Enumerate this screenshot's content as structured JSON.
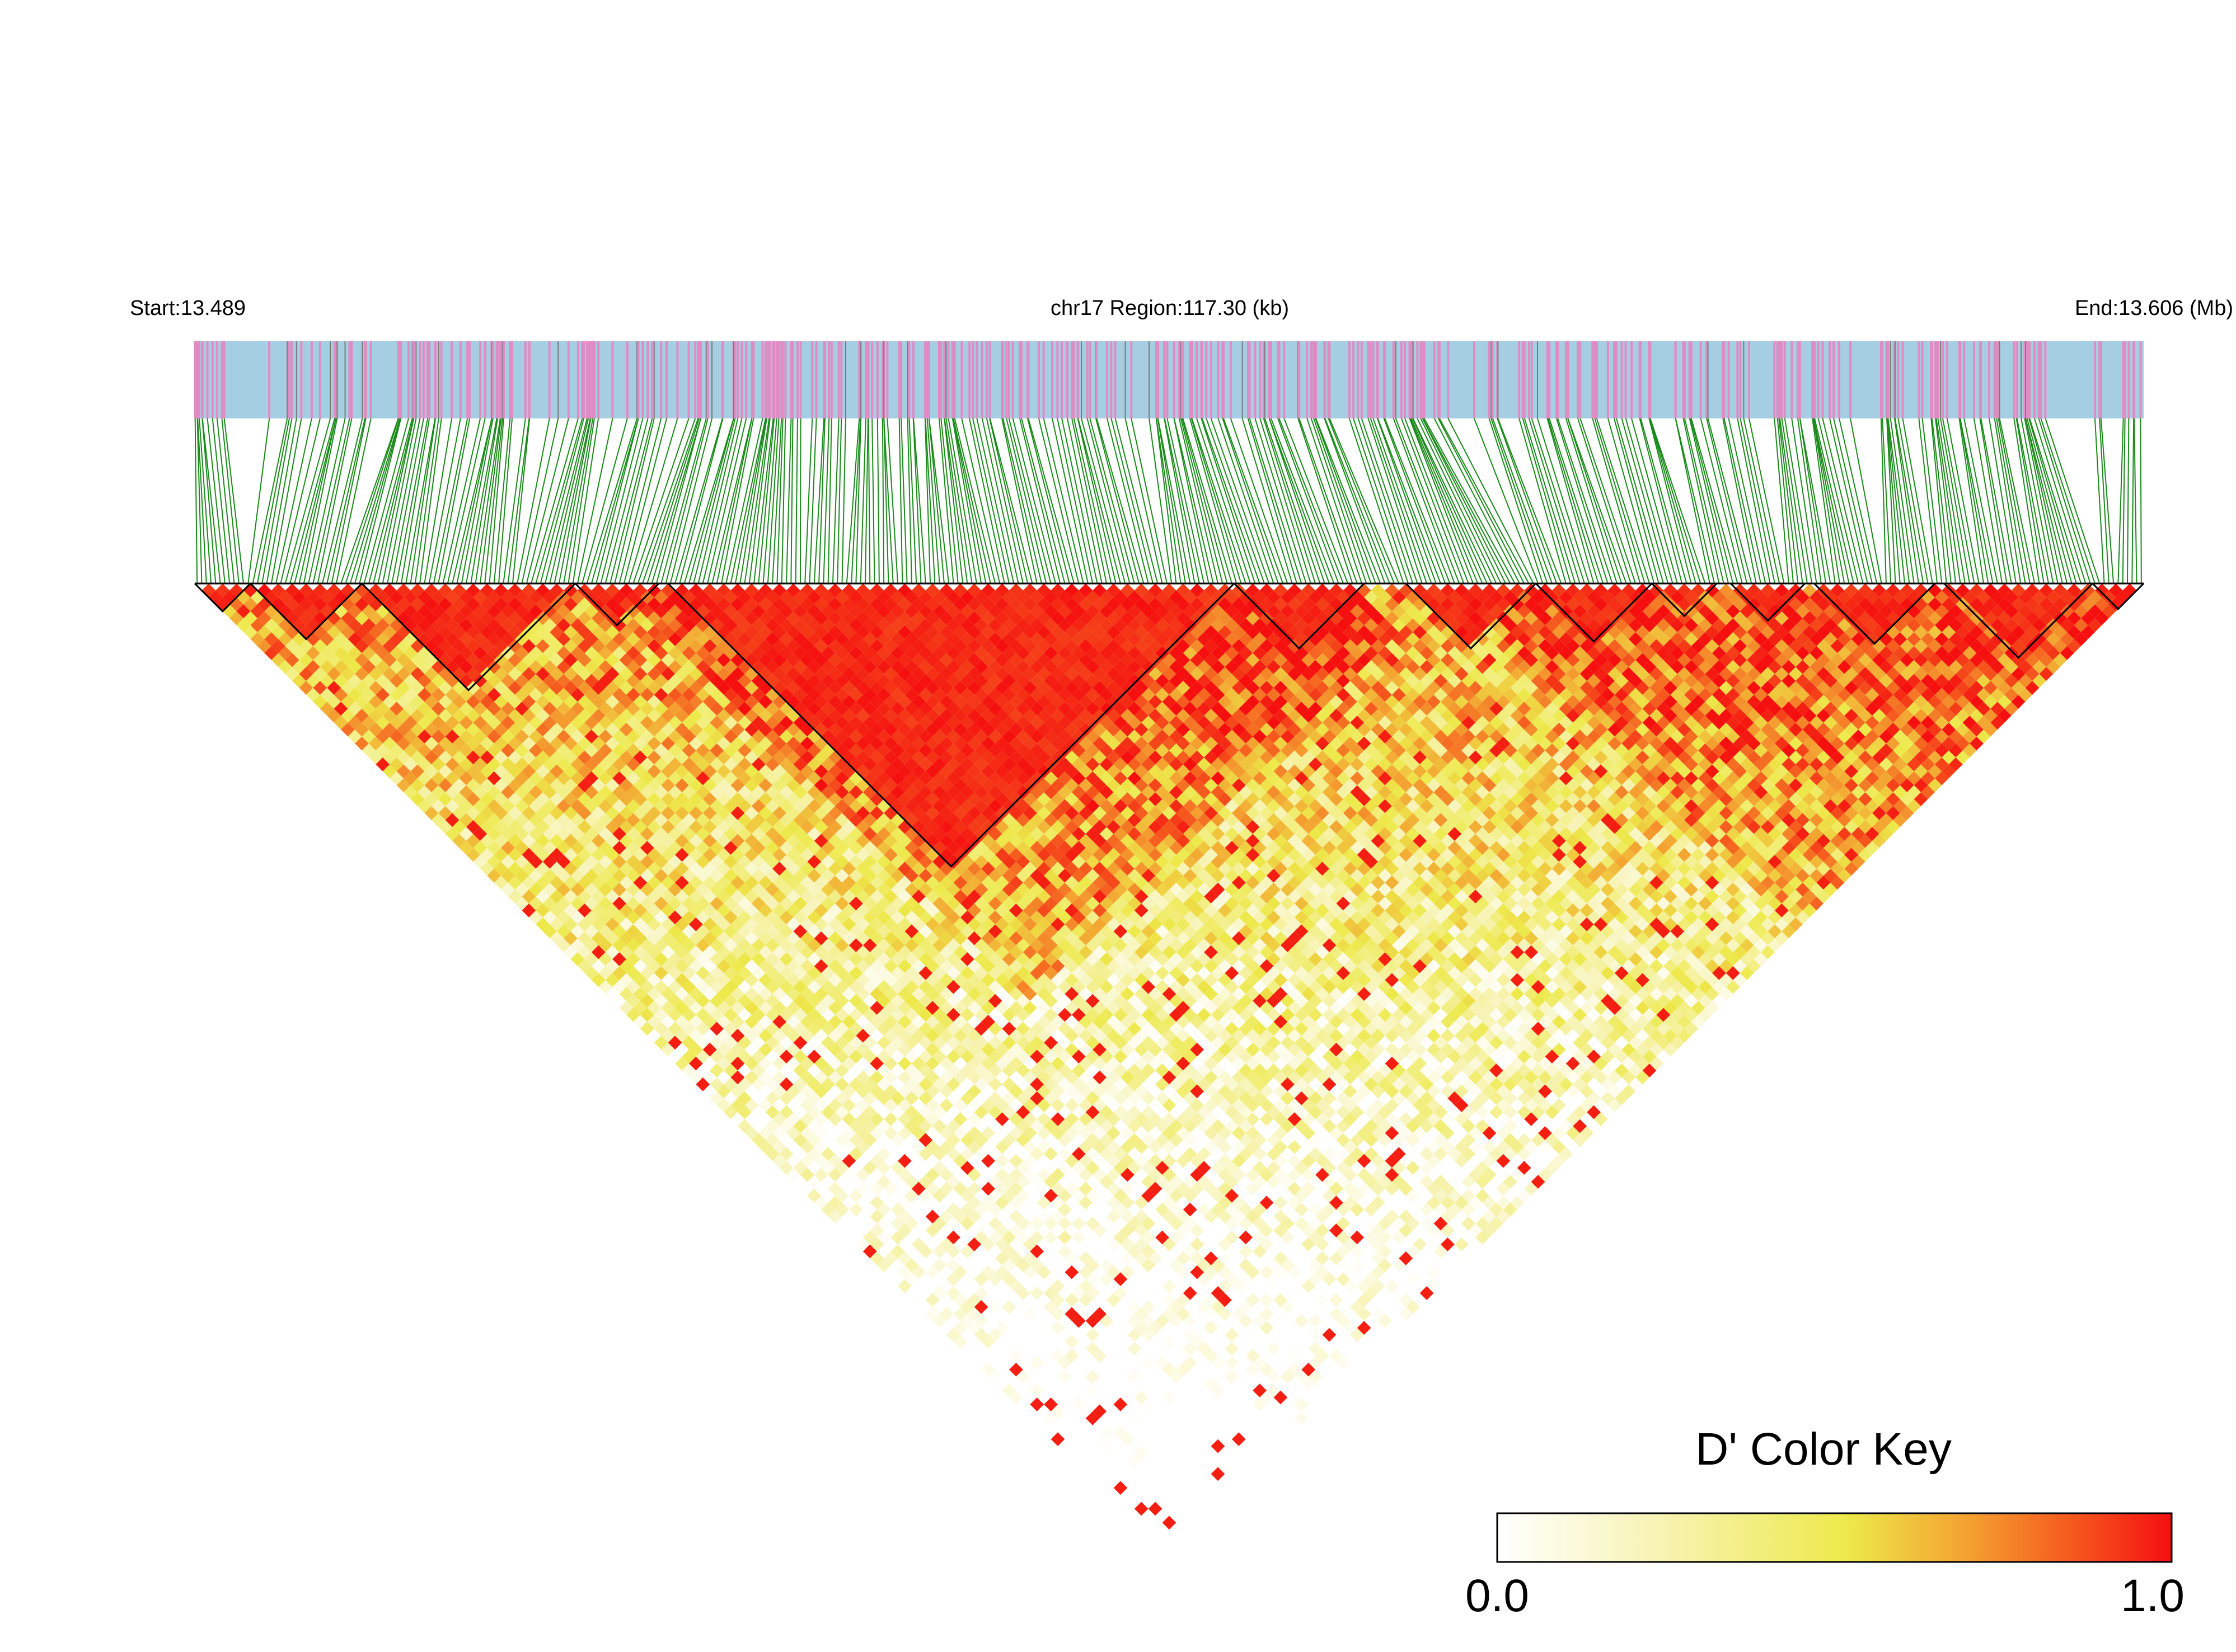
{
  "chart_data": {
    "type": "heatmap",
    "subtype": "linkage-disequilibrium-triangle",
    "header": {
      "start_label": "Start:13.489",
      "region_label": "chr17 Region:117.30 (kb)",
      "end_label": "End:13.606 (Mb)"
    },
    "chromosome": "chr17",
    "region_start_mb": 13.489,
    "region_end_mb": 13.606,
    "region_length_kb": 117.3,
    "metric": "D'",
    "color_key": {
      "title": "D' Color Key",
      "min_label": "0.0",
      "max_label": "1.0",
      "min": 0.0,
      "max": 1.0,
      "colors": [
        "#ffffff",
        "#f7f3b0",
        "#ede94a",
        "#f4a030",
        "#f55a1e",
        "#f50f0f"
      ]
    },
    "colors": {
      "track_background": "#a6cee3",
      "variant_tick": "#e08cc4",
      "connector_line": "#1a8a1a",
      "block_outline": "#000000"
    },
    "snp_count_approx": 420,
    "ld_blocks_approx_kb": [
      [
        0.0,
        5.0
      ],
      [
        5.0,
        12.5
      ],
      [
        12.5,
        25.0
      ],
      [
        25.0,
        30.5
      ],
      [
        31.0,
        59.6
      ],
      [
        59.6,
        67.0
      ],
      [
        69.6,
        76.8
      ],
      [
        77.0,
        84.5
      ],
      [
        85.0,
        89.5
      ],
      [
        90.0,
        95.5
      ],
      [
        96.0,
        103.5
      ],
      [
        104.0,
        111.0
      ],
      [
        111.0,
        117.3
      ]
    ]
  }
}
